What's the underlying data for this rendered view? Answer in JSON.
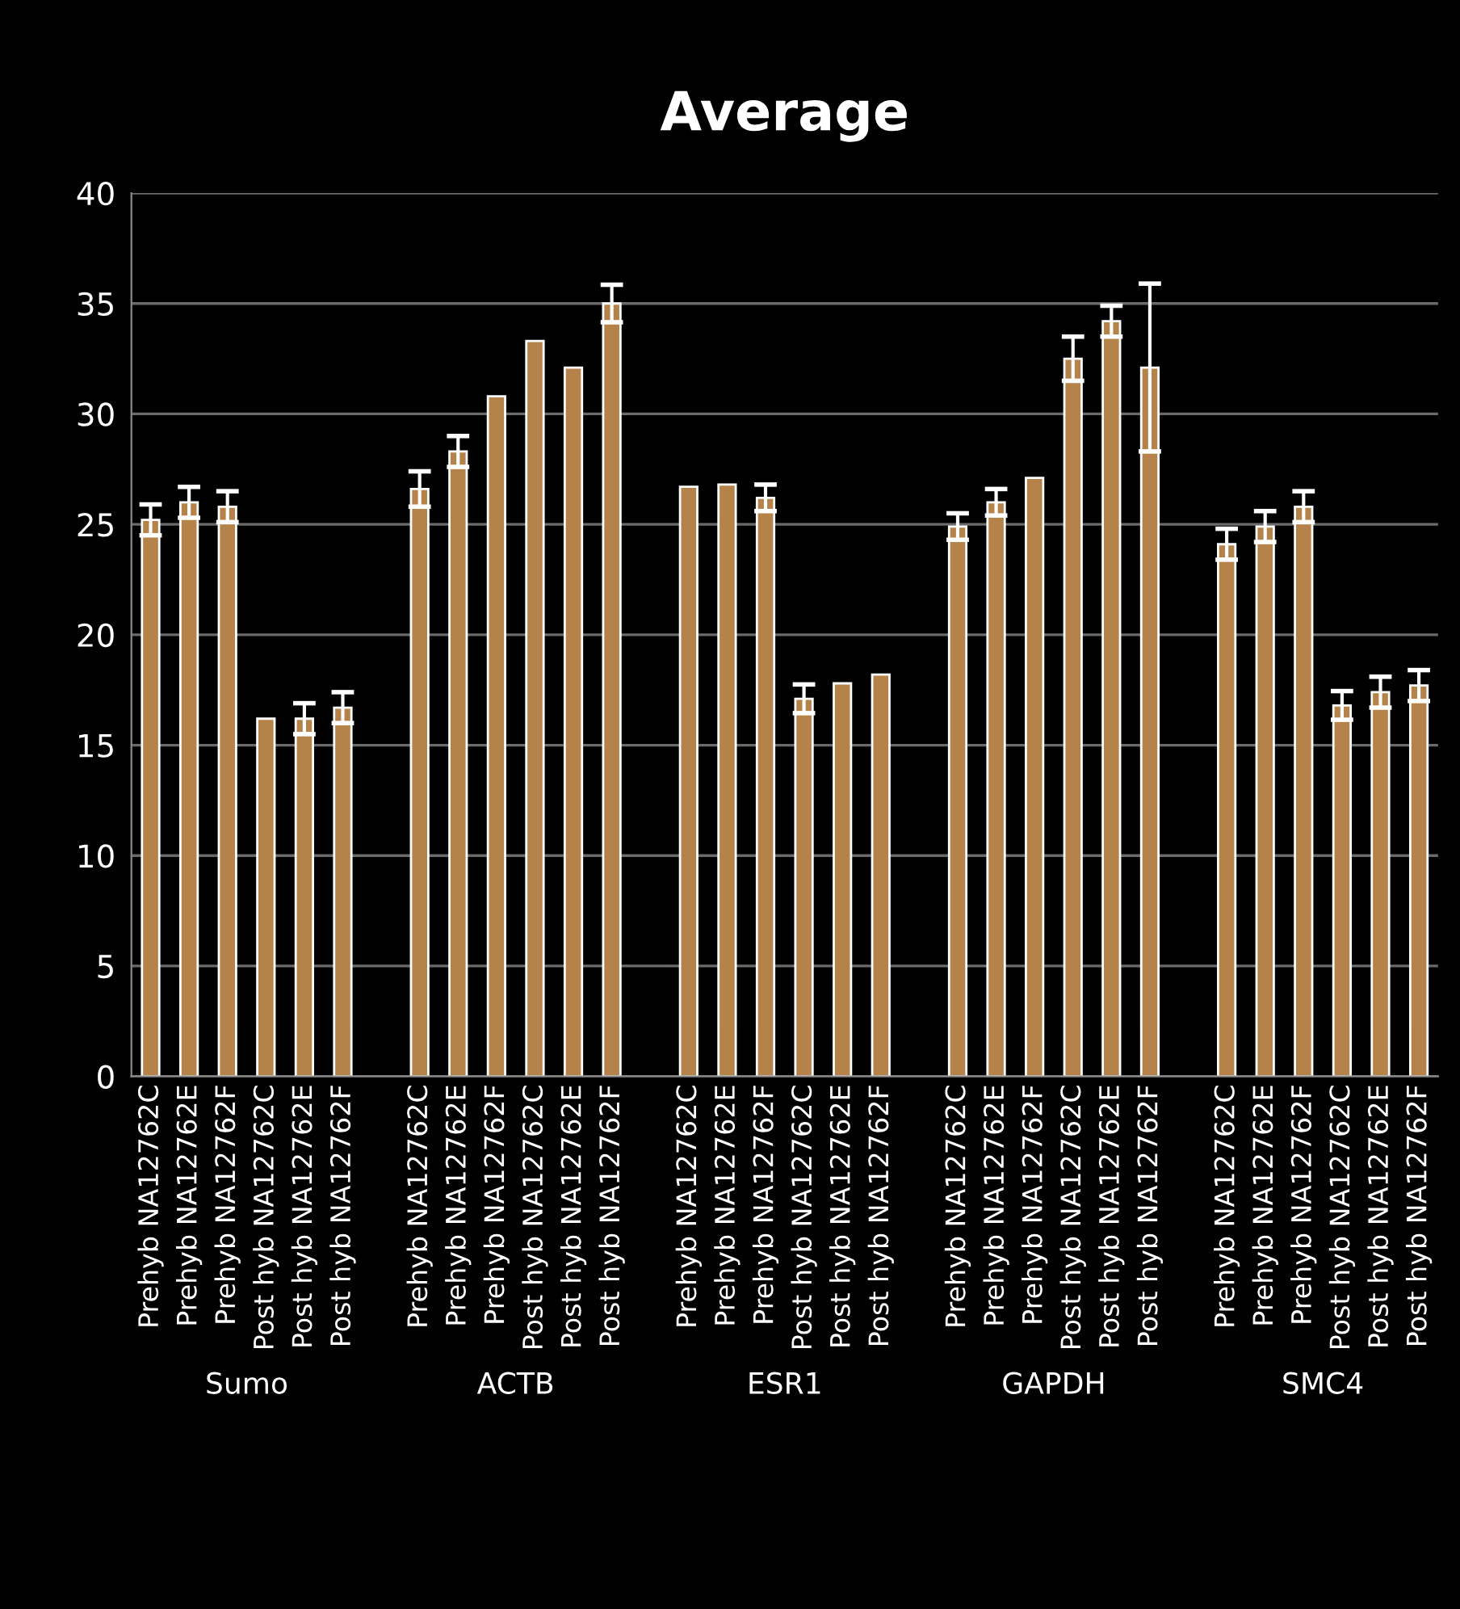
{
  "chart_data": {
    "type": "bar",
    "title": "Average",
    "categories": [
      "Prehyb NA12762C",
      "Prehyb NA12762E",
      "Prehyb NA12762F",
      "Post hyb NA12762C",
      "Post hyb NA12762E",
      "Post hyb NA12762F",
      null,
      "Prehyb NA12762C",
      "Prehyb NA12762E",
      "Prehyb NA12762F",
      "Post hyb NA12762C",
      "Post hyb NA12762E",
      "Post hyb NA12762F",
      null,
      "Prehyb NA12762C",
      "Prehyb NA12762E",
      "Prehyb NA12762F",
      "Post hyb NA12762C",
      "Post hyb NA12762E",
      "Post hyb NA12762F",
      null,
      "Prehyb NA12762C",
      "Prehyb NA12762E",
      "Prehyb NA12762F",
      "Post hyb NA12762C",
      "Post hyb NA12762E",
      "Post hyb NA12762F",
      null,
      "Prehyb NA12762C",
      "Prehyb NA12762E",
      "Prehyb NA12762F",
      "Post hyb NA12762C",
      "Post hyb NA12762E",
      "Post hyb NA12762F"
    ],
    "values": [
      25.2,
      26.0,
      25.8,
      16.2,
      16.2,
      16.7,
      null,
      26.6,
      28.3,
      30.8,
      33.3,
      32.1,
      35.0,
      null,
      26.7,
      26.8,
      26.2,
      17.1,
      17.8,
      18.2,
      null,
      24.9,
      26.0,
      27.1,
      32.5,
      34.2,
      32.1,
      null,
      24.1,
      24.9,
      25.8,
      16.8,
      17.4,
      17.7
    ],
    "errors": [
      0.7,
      0.7,
      0.7,
      null,
      0.7,
      0.7,
      null,
      0.8,
      0.7,
      null,
      null,
      null,
      0.85,
      null,
      null,
      null,
      0.6,
      0.65,
      null,
      null,
      null,
      0.6,
      0.6,
      null,
      1.0,
      0.7,
      3.8,
      null,
      0.7,
      0.7,
      0.7,
      0.65,
      0.7,
      0.7
    ],
    "color": "#b5834a",
    "ylim": [
      0,
      40
    ],
    "yticks": [
      0,
      5,
      10,
      15,
      20,
      25,
      30,
      35,
      40
    ],
    "grid": "y",
    "annotations": [
      "Sumo",
      "ACTB",
      "ESR1",
      "GAPDH",
      "SMC4"
    ]
  }
}
